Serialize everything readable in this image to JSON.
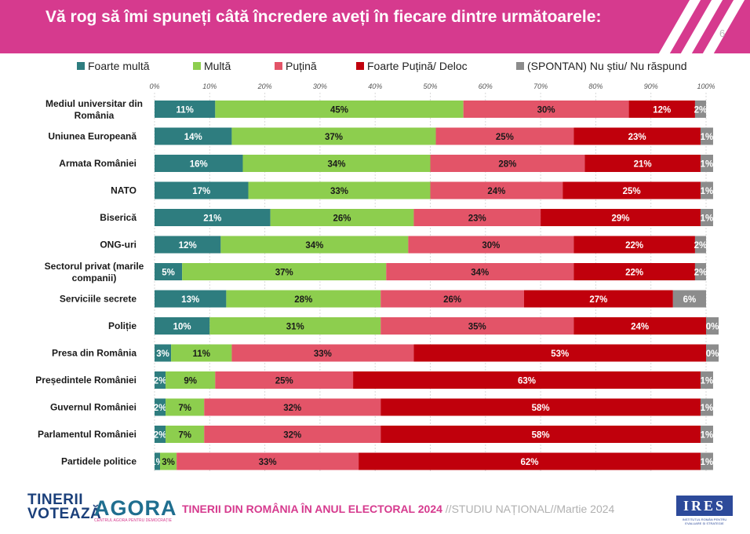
{
  "header": {
    "title": "Vă rog să îmi spuneți câtă încredere aveți în fiecare dintre următoarele:",
    "page_number": "6"
  },
  "colors": {
    "header_bg": "#d63a8e",
    "foarte_multa": "#2e7d7f",
    "multa": "#8dce4e",
    "putina": "#e35468",
    "foarte_putina": "#c0000c",
    "spontan": "#8c8c8c"
  },
  "chart_data": {
    "type": "bar",
    "orientation": "horizontal",
    "stacked": true,
    "xlim": [
      0,
      100
    ],
    "x_ticks": [
      "0%",
      "10%",
      "20%",
      "30%",
      "40%",
      "50%",
      "60%",
      "70%",
      "80%",
      "90%",
      "100%"
    ],
    "grid": true,
    "legend_position": "top",
    "categories": [
      "Mediul universitar din România",
      "Uniunea Europeană",
      "Armata României",
      "NATO",
      "Biserică",
      "ONG-uri",
      "Sectorul privat (marile companii)",
      "Serviciile secrete",
      "Poliție",
      "Presa din România",
      "Președintele României",
      "Guvernul României",
      "Parlamentul României",
      "Partidele politice"
    ],
    "series": [
      {
        "name": "Foarte multă",
        "color": "#2e7d7f",
        "values": [
          11,
          14,
          16,
          17,
          21,
          12,
          5,
          13,
          10,
          3,
          2,
          2,
          2,
          1
        ]
      },
      {
        "name": "Multă",
        "color": "#8dce4e",
        "values": [
          45,
          37,
          34,
          33,
          26,
          34,
          37,
          28,
          31,
          11,
          9,
          7,
          7,
          3
        ]
      },
      {
        "name": "Puțină",
        "color": "#e35468",
        "values": [
          30,
          25,
          28,
          24,
          23,
          30,
          34,
          26,
          35,
          33,
          25,
          32,
          32,
          33
        ]
      },
      {
        "name": "Foarte Puțină/ Deloc",
        "color": "#c0000c",
        "values": [
          12,
          23,
          21,
          25,
          29,
          22,
          22,
          27,
          24,
          53,
          63,
          58,
          58,
          62
        ]
      },
      {
        "name": "(SPONTAN) Nu știu/ Nu răspund",
        "color": "#8c8c8c",
        "values": [
          2,
          1,
          1,
          1,
          1,
          2,
          2,
          6,
          0,
          0,
          1,
          1,
          1,
          1
        ]
      }
    ]
  },
  "footer": {
    "logo1": "TINERII VOTEAZĂ",
    "logo2": "AGORA",
    "logo2_sub": "CENTRUL AGORA PENTRU DEMOCRAȚIE",
    "title_main": "TINERII DIN ROMÂNIA ÎN ANUL ELECTORAL 2024",
    "title_sub": " //STUDIU NAȚIONAL//Martie 2024",
    "ires": "IRES",
    "ires_sub": "INSTITUTUL ROMÂN PENTRU EVALUARE ȘI STRATEGIE"
  }
}
